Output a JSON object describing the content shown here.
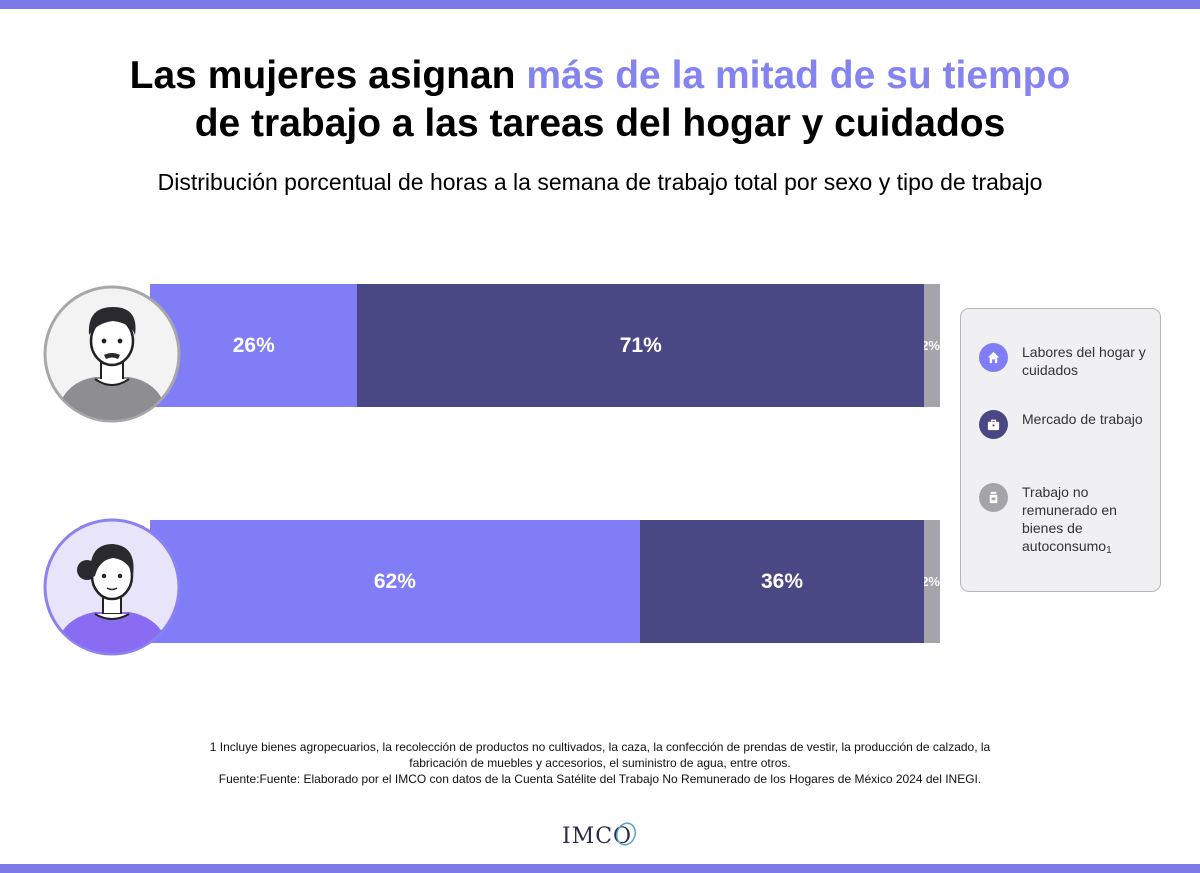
{
  "colors": {
    "band": "#7b7ae8",
    "accent_title": "#8583f0",
    "hogar": "#807df6",
    "mercado": "#4a4785",
    "autoconsumo": "#a4a4aa"
  },
  "title": {
    "part1": "Las mujeres asignan ",
    "highlight": "más de la mitad de su tiempo",
    "line2": "de trabajo a las tareas del hogar y cuidados"
  },
  "subtitle": "Distribución porcentual de horas a la semana de trabajo total por sexo y tipo de trabajo",
  "chart_data": {
    "type": "bar",
    "orientation": "horizontal",
    "stacked": true,
    "title": "Las mujeres asignan más de la mitad de su tiempo de trabajo a las tareas del hogar y cuidados",
    "subtitle": "Distribución porcentual de horas a la semana de trabajo total por sexo y tipo de trabajo",
    "categories": [
      "Hombres",
      "Mujeres"
    ],
    "series": [
      {
        "name": "Labores del hogar y cuidados",
        "values": [
          26,
          62
        ],
        "labels": [
          "26%",
          "62%"
        ],
        "icon": "home-icon"
      },
      {
        "name": "Mercado de trabajo",
        "values": [
          71,
          36
        ],
        "labels": [
          "71%",
          "36%"
        ],
        "icon": "briefcase-icon"
      },
      {
        "name": "Trabajo no remunerado en bienes de autoconsumo",
        "values": [
          2,
          2
        ],
        "labels": [
          "2%",
          "2%"
        ],
        "icon": "jar-icon"
      }
    ],
    "xlim": [
      0,
      100
    ],
    "legend": "right"
  },
  "legend": {
    "items": [
      {
        "label": "Labores del hogar y cuidados",
        "icon": "home-icon"
      },
      {
        "label": "Mercado de trabajo",
        "icon": "briefcase-icon"
      },
      {
        "label": "Trabajo no remunerado en bienes de autoconsumo",
        "sub": "1",
        "icon": "jar-icon"
      }
    ]
  },
  "footnote": {
    "line1": "1 Incluye bienes agropecuarios, la recolección de productos no cultivados, la caza, la confección de prendas de vestir, la producción de calzado, la",
    "line2": "fabricación de muebles y accesorios, el suministro de agua, entre otros.",
    "line3": "Fuente:Fuente: Elaborado por el IMCO con datos de la Cuenta Satélite del Trabajo No Remunerado de los Hogares de México 2024 del INEGI."
  },
  "logo_text": "IMCO"
}
